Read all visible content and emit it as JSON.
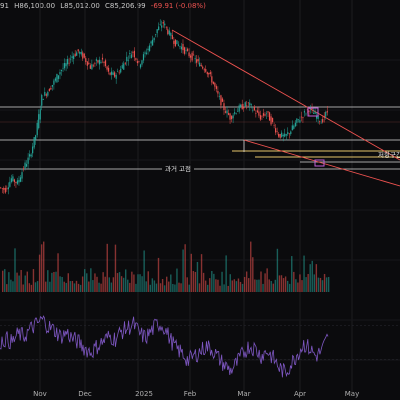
{
  "header": {
    "ohlc": {
      "open_tail": "91",
      "high": "H86,100.00",
      "low": "L85,012.00",
      "close": "C85,206.99",
      "change": "-69.91 (-0.08%)"
    }
  },
  "annotations": {
    "past_highs": "과거 고점",
    "right_label": "저항구간"
  },
  "colors": {
    "up": "#26a69a",
    "down": "#ef5350",
    "rsi": "#7e57c2",
    "trendline": "#ef5350",
    "level_line": "#d8d8d8",
    "level_line_warm": "#e6c46a",
    "box": "#c05fd6"
  },
  "chart_data": {
    "type": "line",
    "x_tick_labels": [
      "Nov",
      "Dec",
      "2025",
      "Feb",
      "Mar",
      "Apr",
      "May"
    ],
    "series": [
      {
        "values": [
          68.0,
          67.5,
          70.0,
          69.0,
          72.5,
          75.0,
          80.0,
          88.5,
          90.0,
          92.0,
          94.5,
          96.0,
          98.0,
          99.0,
          97.5,
          95.5,
          96.5,
          97.0,
          94.0,
          93.5,
          95.0,
          97.5,
          99.0,
          96.0,
          98.5,
          101.0,
          104.0,
          105.5,
          103.0,
          101.0,
          100.0,
          98.5,
          97.5,
          96.0,
          95.0,
          92.5,
          89.0,
          86.0,
          84.0,
          85.5,
          86.5,
          87.0,
          85.5,
          84.0,
          85.0,
          82.5,
          80.0,
          79.5,
          81.0,
          83.0,
          84.5,
          86.0,
          84.5,
          83.0,
          85.2
        ]
      },
      {
        "values": [
          56,
          58,
          55,
          62,
          60,
          66,
          70,
          74,
          68,
          65,
          60,
          63,
          58,
          55,
          50,
          47,
          52,
          56,
          60,
          58,
          64,
          67,
          70,
          62,
          59,
          65,
          71,
          68,
          58,
          50,
          46,
          40,
          44,
          48,
          52,
          49,
          42,
          36,
          32,
          38,
          46,
          52,
          50,
          44,
          48,
          42,
          34,
          30,
          38,
          46,
          54,
          50,
          44,
          48,
          60
        ]
      }
    ]
  }
}
